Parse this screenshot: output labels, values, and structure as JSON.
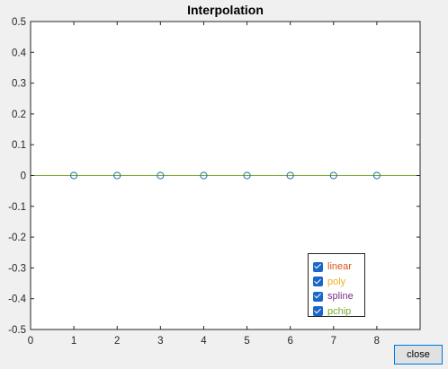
{
  "window": {
    "title": "Interpolation"
  },
  "chart_data": {
    "type": "line",
    "title": "Interpolation",
    "xlabel": "",
    "ylabel": "",
    "xlim": [
      0,
      9
    ],
    "ylim": [
      -0.5,
      0.5
    ],
    "xticks": [
      0,
      1,
      2,
      3,
      4,
      5,
      6,
      7,
      8
    ],
    "yticks": [
      0.5,
      0.4,
      0.3,
      0.2,
      0.1,
      0,
      -0.1,
      -0.2,
      -0.3,
      -0.4,
      -0.5
    ],
    "points": {
      "marker": "circle",
      "x": [
        1,
        2,
        3,
        4,
        5,
        6,
        7,
        8
      ],
      "y": [
        0,
        0,
        0,
        0,
        0,
        0,
        0,
        0
      ],
      "color": "#1f6e9e"
    },
    "line": {
      "x": [
        0,
        9
      ],
      "y": [
        0,
        0
      ],
      "color": "#77ac30"
    },
    "legend_position": "bottom-right",
    "grid": false
  },
  "legend": {
    "items": [
      {
        "label": "linear",
        "color": "#d95319",
        "checked": true
      },
      {
        "label": "poly",
        "color": "#edb120",
        "checked": true
      },
      {
        "label": "spline",
        "color": "#7e2f8e",
        "checked": true
      },
      {
        "label": "pchip",
        "color": "#77ac30",
        "checked": true
      }
    ]
  },
  "buttons": {
    "close_label": "close"
  }
}
